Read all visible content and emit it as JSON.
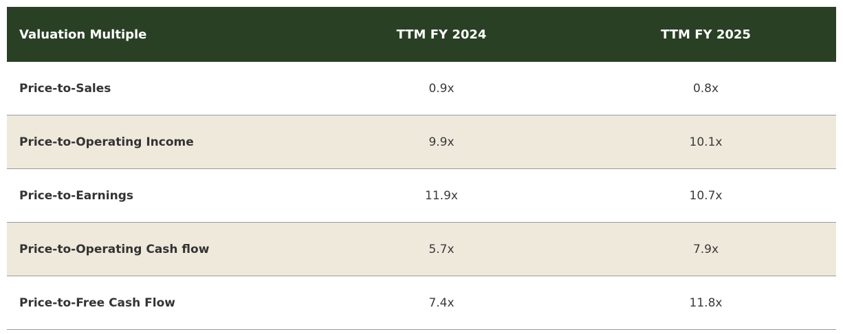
{
  "table": {
    "header": [
      "Valuation Multiple",
      "TTM FY 2024",
      "TTM FY 2025"
    ],
    "rows": [
      [
        "Price-to-Sales",
        "0.9x",
        "0.8x"
      ],
      [
        "Price-to-Operating Income",
        "9.9x",
        "10.1x"
      ],
      [
        "Price-to-Earnings",
        "11.9x",
        "10.7x"
      ],
      [
        "Price-to-Operating Cash flow",
        "5.7x",
        "7.9x"
      ],
      [
        "Price-to-Free Cash Flow",
        "7.4x",
        "11.8x"
      ]
    ]
  }
}
